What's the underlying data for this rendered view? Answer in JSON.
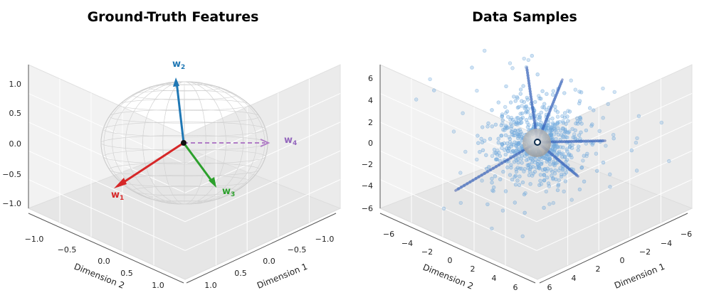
{
  "chart_data": [
    {
      "type": "scatter",
      "title": "Ground-Truth Features",
      "xlabel": "Dimension 1",
      "ylabel": "Dimension 2",
      "zlabel": "",
      "xlim": [
        -1.2,
        1.2
      ],
      "ylim": [
        -1.2,
        1.2
      ],
      "zlim": [
        -1.2,
        1.2
      ],
      "xticks": [
        "1.0",
        "0.5",
        "0.0",
        "−0.5",
        "−1.0"
      ],
      "yticks": [
        "1.0",
        "0.5",
        "0.0",
        "−0.5",
        "−1.0"
      ],
      "zticks": [
        "1.0",
        "0.5",
        "0.0",
        "−0.5",
        "−1.0"
      ],
      "grid": true,
      "unit_sphere": true,
      "series": [
        {
          "name": "w",
          "sub": "1",
          "color": "#d62728",
          "style": "solid"
        },
        {
          "name": "w",
          "sub": "2",
          "color": "#1f77b4",
          "style": "solid"
        },
        {
          "name": "w",
          "sub": "3",
          "color": "#2ca02c",
          "style": "solid"
        },
        {
          "name": "w",
          "sub": "4",
          "color": "#9467bd",
          "style": "dashed"
        }
      ]
    },
    {
      "type": "scatter",
      "title": "Data Samples",
      "xlabel": "Dimension 1",
      "ylabel": "Dimension 2",
      "zlabel": "",
      "xlim": [
        -7,
        7
      ],
      "ylim": [
        -7,
        7
      ],
      "zlim": [
        -7,
        7
      ],
      "xticks": [
        "6",
        "4",
        "2",
        "0",
        "−2",
        "−4",
        "−6"
      ],
      "yticks": [
        "6",
        "4",
        "2",
        "0",
        "−2",
        "−4",
        "−6"
      ],
      "zticks": [
        "6",
        "4",
        "2",
        "0",
        "−2",
        "−4",
        "−6"
      ],
      "grid": true,
      "point_color": "#6fa8dc",
      "ray_color": "#1f3f9f"
    }
  ]
}
